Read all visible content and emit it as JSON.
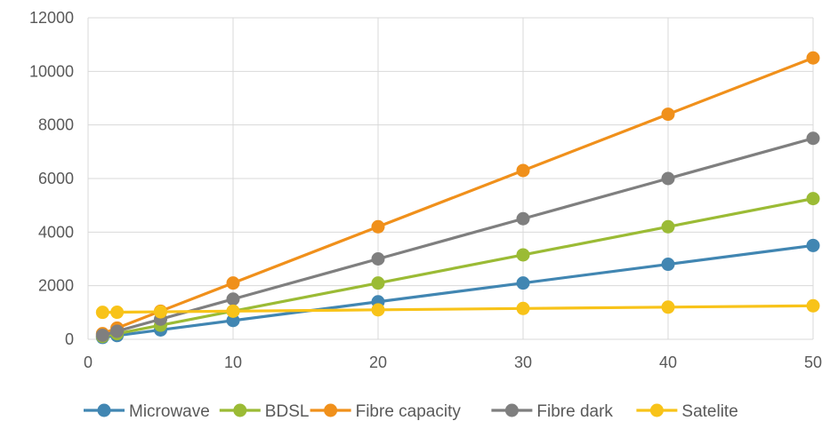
{
  "chart_data": {
    "type": "line",
    "title": "",
    "xlabel": "",
    "ylabel": "",
    "x": [
      1,
      2,
      5,
      10,
      20,
      30,
      40,
      50
    ],
    "xlim": [
      0,
      50
    ],
    "ylim": [
      0,
      12000
    ],
    "x_ticks": [
      0,
      10,
      20,
      30,
      40,
      50
    ],
    "y_ticks": [
      0,
      2000,
      4000,
      6000,
      8000,
      10000,
      12000
    ],
    "grid": "vertical and horizontal",
    "legend_position": "bottom",
    "series": [
      {
        "name": "Microwave",
        "color": "#4186b2",
        "values": [
          70,
          140,
          350,
          700,
          1400,
          2100,
          2800,
          3500
        ]
      },
      {
        "name": "BDSL",
        "color": "#9bbb35",
        "values": [
          105,
          210,
          525,
          1050,
          2100,
          3150,
          4200,
          5250
        ]
      },
      {
        "name": "Fibre capacity",
        "color": "#f0901b",
        "values": [
          210,
          420,
          1050,
          2100,
          4200,
          6300,
          8400,
          10500
        ]
      },
      {
        "name": "Fibre dark",
        "color": "#7f7f7f",
        "values": [
          150,
          300,
          750,
          1500,
          3000,
          4500,
          6000,
          7500
        ]
      },
      {
        "name": "Satelite",
        "color": "#f8c319",
        "values": [
          1005,
          1010,
          1025,
          1050,
          1100,
          1150,
          1200,
          1250
        ]
      }
    ]
  }
}
